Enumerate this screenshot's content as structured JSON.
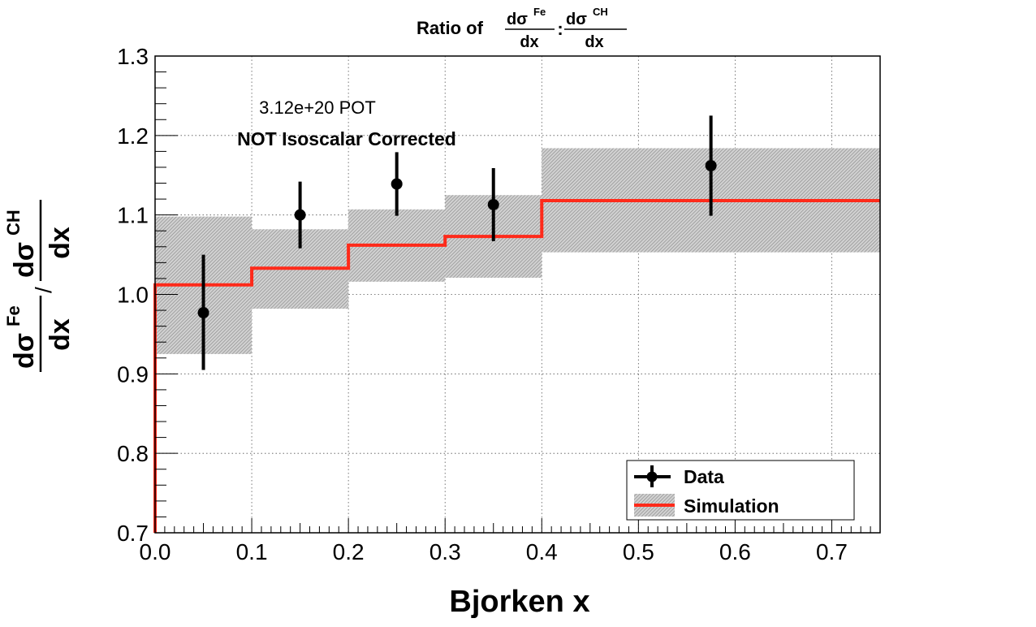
{
  "chart_data": {
    "type": "line",
    "title": {
      "prefix": "Ratio of",
      "num_left": "dσ",
      "num_left_sup": "Fe",
      "den_left": "dx",
      "separator": ":",
      "num_right": "dσ",
      "num_right_sup": "CH",
      "den_right": "dx"
    },
    "xlabel": "Bjorken x",
    "ylabel": {
      "num_left": "dσ",
      "num_left_sup": "Fe",
      "den_left": "dx",
      "slash": "/",
      "num_right": "dσ",
      "num_right_sup": "CH",
      "den_right": "dx"
    },
    "xlim": [
      0.0,
      0.75
    ],
    "ylim": [
      0.7,
      1.3
    ],
    "x_ticks": [
      "0.0",
      "0.1",
      "0.2",
      "0.3",
      "0.4",
      "0.5",
      "0.6",
      "0.7"
    ],
    "y_ticks": [
      "0.7",
      "0.8",
      "0.9",
      "1.0",
      "1.1",
      "1.2",
      "1.3"
    ],
    "grid": true,
    "annotations": {
      "pot": "3.12e+20 POT",
      "iso": "NOT Isoscalar Corrected"
    },
    "legend": {
      "placement": "bottom-right",
      "data_label": "Data",
      "sim_label": "Simulation"
    },
    "data_points": [
      {
        "x": 0.05,
        "y": 0.977,
        "err_low": 0.072,
        "err_high": 0.073
      },
      {
        "x": 0.15,
        "y": 1.1,
        "err_low": 0.042,
        "err_high": 0.042
      },
      {
        "x": 0.25,
        "y": 1.139,
        "err_low": 0.04,
        "err_high": 0.04
      },
      {
        "x": 0.35,
        "y": 1.113,
        "err_low": 0.046,
        "err_high": 0.046
      },
      {
        "x": 0.575,
        "y": 1.162,
        "err_low": 0.063,
        "err_high": 0.063
      }
    ],
    "simulation": [
      {
        "x_low": 0.0,
        "x_high": 0.1,
        "y": 1.012,
        "band_low": 0.925,
        "band_high": 1.098
      },
      {
        "x_low": 0.1,
        "x_high": 0.2,
        "y": 1.033,
        "band_low": 0.982,
        "band_high": 1.082
      },
      {
        "x_low": 0.2,
        "x_high": 0.3,
        "y": 1.062,
        "band_low": 1.016,
        "band_high": 1.107
      },
      {
        "x_low": 0.3,
        "x_high": 0.4,
        "y": 1.073,
        "band_low": 1.021,
        "band_high": 1.125
      },
      {
        "x_low": 0.4,
        "x_high": 0.75,
        "y": 1.118,
        "band_low": 1.053,
        "band_high": 1.184
      }
    ],
    "colors": {
      "data": "#000000",
      "simulation_line": "#ff2a1a",
      "band": "#b8b8b8",
      "grid": "#555555",
      "axis": "#000000"
    }
  }
}
